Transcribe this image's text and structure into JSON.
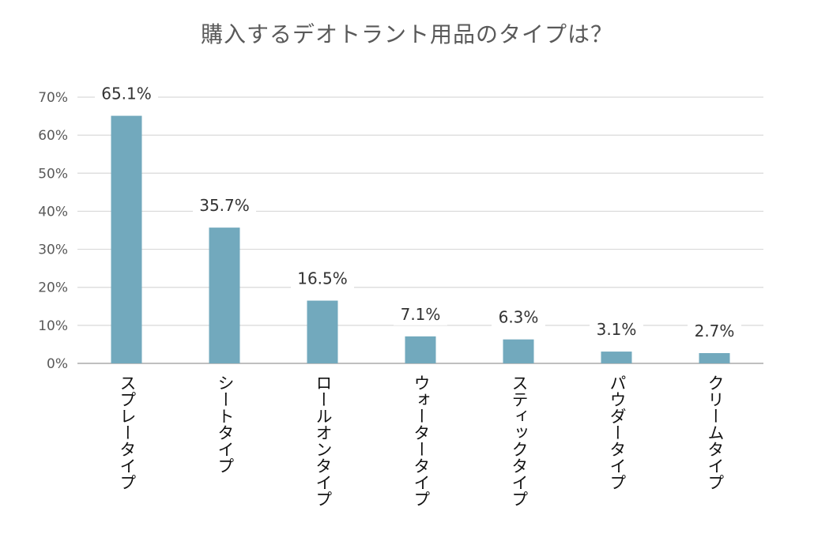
{
  "chart_data": {
    "type": "bar",
    "title": "購入するデオトラント用品のタイプは？",
    "xlabel": "",
    "ylabel": "",
    "categories": [
      "スプレータイプ",
      "シートタイプ",
      "ロールオンタイプ",
      "ウォータータイプ",
      "スティックタイプ",
      "パウダータイプ",
      "クリームタイプ"
    ],
    "values": [
      65.1,
      35.7,
      16.5,
      7.1,
      6.3,
      3.1,
      2.7
    ],
    "data_labels": [
      "65.1%",
      "35.7%",
      "16.5%",
      "7.1%",
      "6.3%",
      "3.1%",
      "2.7%"
    ],
    "ylim": [
      0,
      70
    ],
    "yticks": [
      0,
      10,
      20,
      30,
      40,
      50,
      60,
      70
    ],
    "ytick_labels": [
      "0%",
      "10%",
      "20%",
      "30%",
      "40%",
      "50%",
      "60%",
      "70%"
    ],
    "grid": true,
    "legend": "none",
    "colors": {
      "bar": "#72a9bd",
      "grid": "#d9d9d9",
      "axis": "#bfbfbf"
    }
  }
}
